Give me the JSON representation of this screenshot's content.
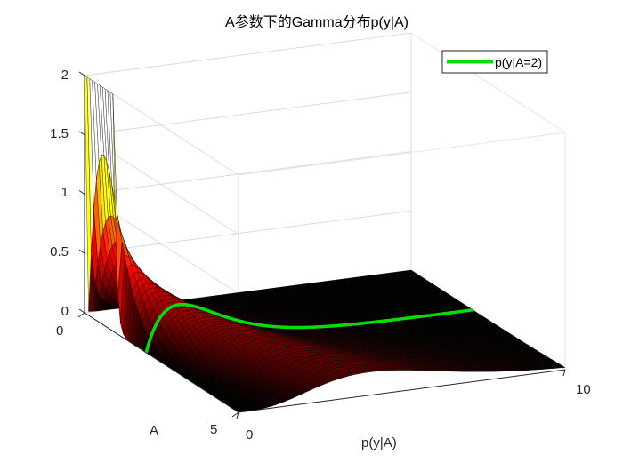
{
  "chart_data": {
    "type": "surface",
    "title": "A参数下的Gamma分布p(y|A)",
    "xlabel": "p(y|A)",
    "ylabel": "A",
    "zlabel": "",
    "x_range": [
      0,
      10
    ],
    "y_range": [
      0,
      5
    ],
    "z_range": [
      0,
      2
    ],
    "x_ticks": [
      "0",
      "10"
    ],
    "y_ticks": [
      "0",
      "5"
    ],
    "z_ticks": [
      "0",
      "0.5",
      "1",
      "1.5",
      "2"
    ],
    "grid": true,
    "legend_position": "top-right",
    "surface_function": "p(y|A) = y^(A-1) e^(-y) / Gamma(A)",
    "colormap": "hot",
    "highlight_series": {
      "name": "p(y|A=2)",
      "A": 2,
      "color": "#00e000"
    }
  }
}
